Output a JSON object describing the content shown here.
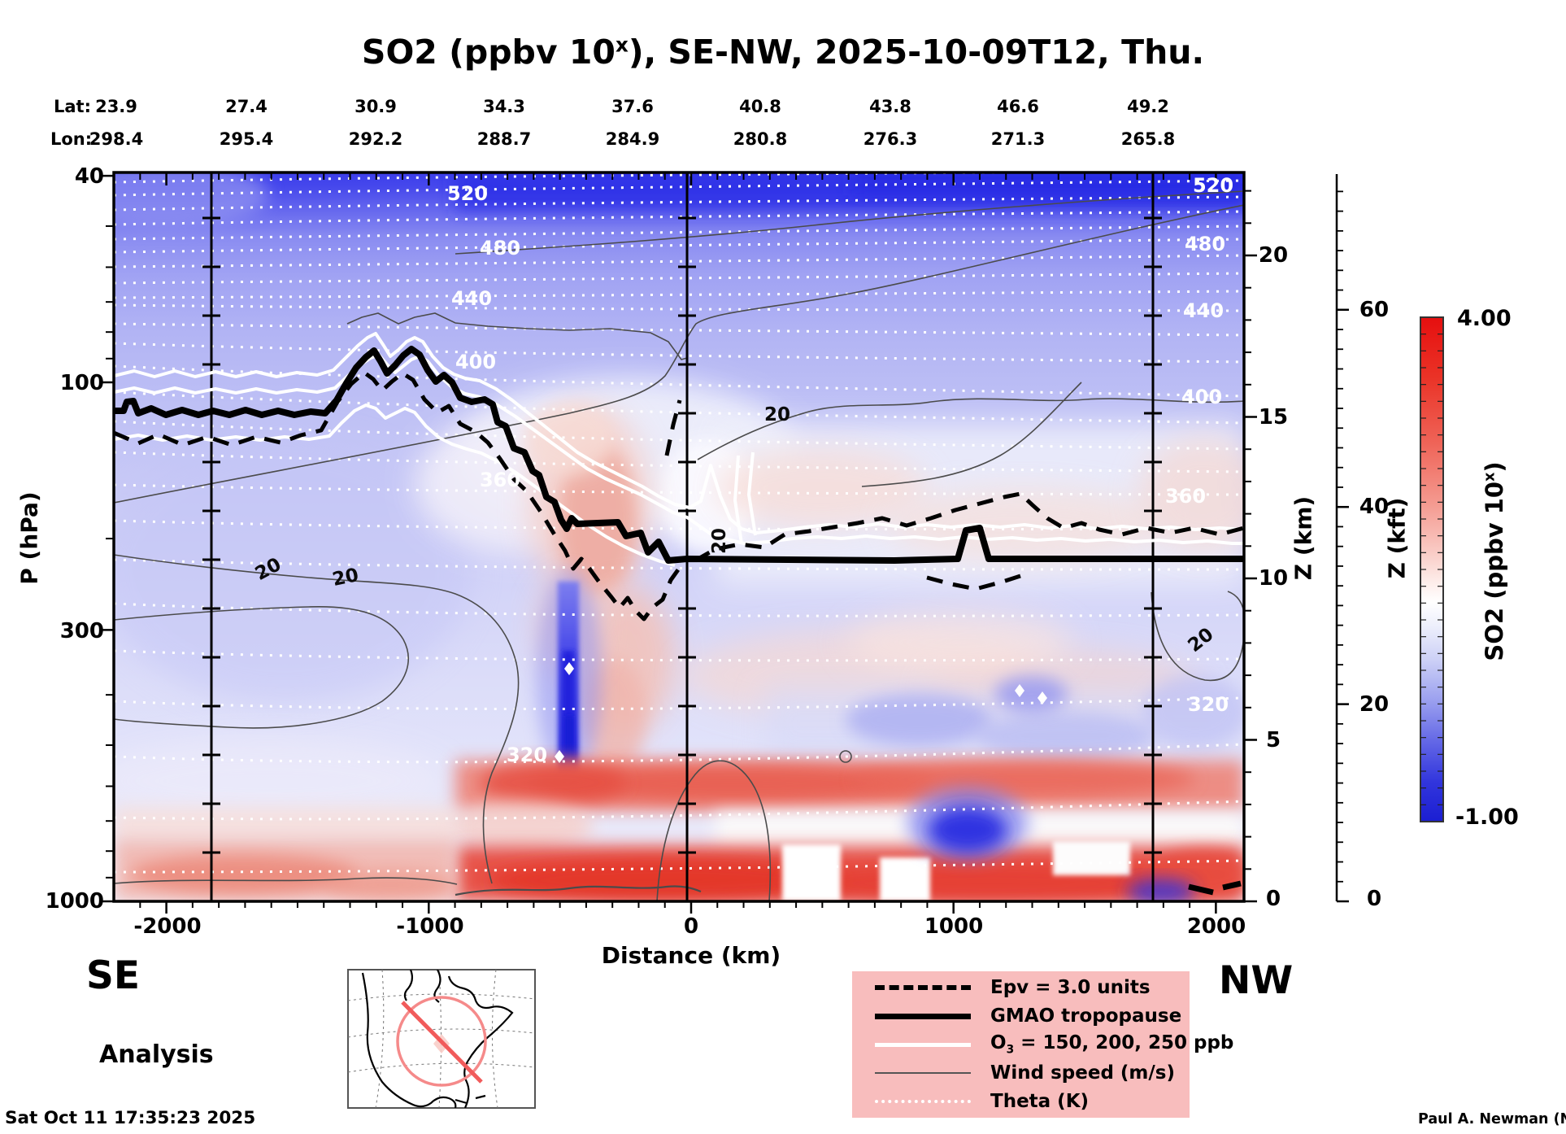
{
  "title": {
    "prefix": "SO2 (ppbv 10",
    "sup": "x",
    "suffix": "), SE-NW, 2025-10-09T12, Thu."
  },
  "top_axis": {
    "lat_label": "Lat:",
    "lon_label": "Lon:",
    "lat": [
      "23.9",
      "27.4",
      "30.9",
      "34.3",
      "37.6",
      "40.8",
      "43.8",
      "46.6",
      "49.2"
    ],
    "lon": [
      "298.4",
      "295.4",
      "292.2",
      "288.7",
      "284.9",
      "280.8",
      "276.3",
      "271.3",
      "265.8"
    ]
  },
  "pressure_axis": {
    "label": "P (hPa)",
    "ticks": [
      "40",
      "100",
      "300",
      "1000"
    ]
  },
  "distance_axis": {
    "label": "Distance (km)",
    "ticks": [
      "-2000",
      "-1000",
      "0",
      "1000",
      "2000"
    ]
  },
  "z_km_axis": {
    "label": "Z (km)",
    "ticks": [
      "20",
      "15",
      "10",
      "5",
      "0"
    ]
  },
  "z_kft_axis": {
    "label": "Z (kft)",
    "ticks": [
      "60",
      "40",
      "20",
      "0"
    ]
  },
  "colorbar": {
    "max_label": "4.00",
    "min_label": "-1.00",
    "title_prefix": "SO2 (ppbv 10",
    "title_sup": "x",
    "title_suffix": ")"
  },
  "corner_labels": {
    "left": "SE",
    "right": "NW"
  },
  "analysis_label": "Analysis",
  "timestamp": "Sat Oct 11 17:35:23 2025",
  "credit": "Paul A. Newman (NASA",
  "legend": {
    "epv": "Epv = 3.0 units",
    "tropopause": "GMAO tropopause",
    "o3_prefix": "O",
    "o3_sub": "3",
    "o3_suffix": " = 150, 200, 250 ppb",
    "wind": "Wind speed (m/s)",
    "theta": "Theta (K)"
  },
  "contour_labels": {
    "theta": [
      "520",
      "480",
      "440",
      "400",
      "360",
      "320"
    ],
    "wind": "20"
  },
  "chart_data": {
    "type": "heatmap",
    "title": "SO2 (ppbv 10^x), SE-NW, 2025-10-09T12, Thu.",
    "xlabel": "Distance (km)",
    "ylabel": "P (hPa)",
    "x_range_km": [
      -2200,
      2100
    ],
    "x_ticks_km": [
      -2000,
      -1000,
      0,
      1000,
      2000
    ],
    "y_scale": "log",
    "y_ticks_hPa": [
      40,
      100,
      300,
      1000
    ],
    "right_axis_z_km_ticks": [
      20,
      15,
      10,
      5,
      0
    ],
    "right_axis_z_kft_ticks": [
      60,
      40,
      20,
      0
    ],
    "color_range_ppbv_10x": [
      -1.0,
      4.0
    ],
    "colorbar_label": "SO2 (ppbv 10^x)",
    "transect_waypoints": {
      "lat": [
        23.9,
        27.4,
        30.9,
        34.3,
        37.6,
        40.8,
        43.8,
        46.6,
        49.2
      ],
      "lon": [
        298.4,
        295.4,
        292.2,
        288.7,
        284.9,
        280.8,
        276.3,
        271.3,
        265.8
      ]
    },
    "vertical_marker_lines_km": [
      -1820,
      0,
      1820
    ],
    "overlays": [
      {
        "name": "Epv",
        "level": "3.0 units",
        "style": "dashed black"
      },
      {
        "name": "GMAO tropopause",
        "style": "thick black"
      },
      {
        "name": "O3",
        "levels_ppb": [
          150,
          200,
          250
        ],
        "style": "solid white"
      },
      {
        "name": "Wind speed (m/s)",
        "labeled_level": 20,
        "style": "thin gray"
      },
      {
        "name": "Theta (K)",
        "labeled_levels": [
          320,
          360,
          400,
          440,
          480,
          520
        ],
        "style": "dotted white"
      }
    ],
    "field_summary": "Low SO2 (blue) aloft; high SO2 (red) below ~800 hPa along the whole transect; narrow deep-blue column near -450 km; tropopause near 115 hPa on SE side descending to ~240 hPa on NW side."
  }
}
